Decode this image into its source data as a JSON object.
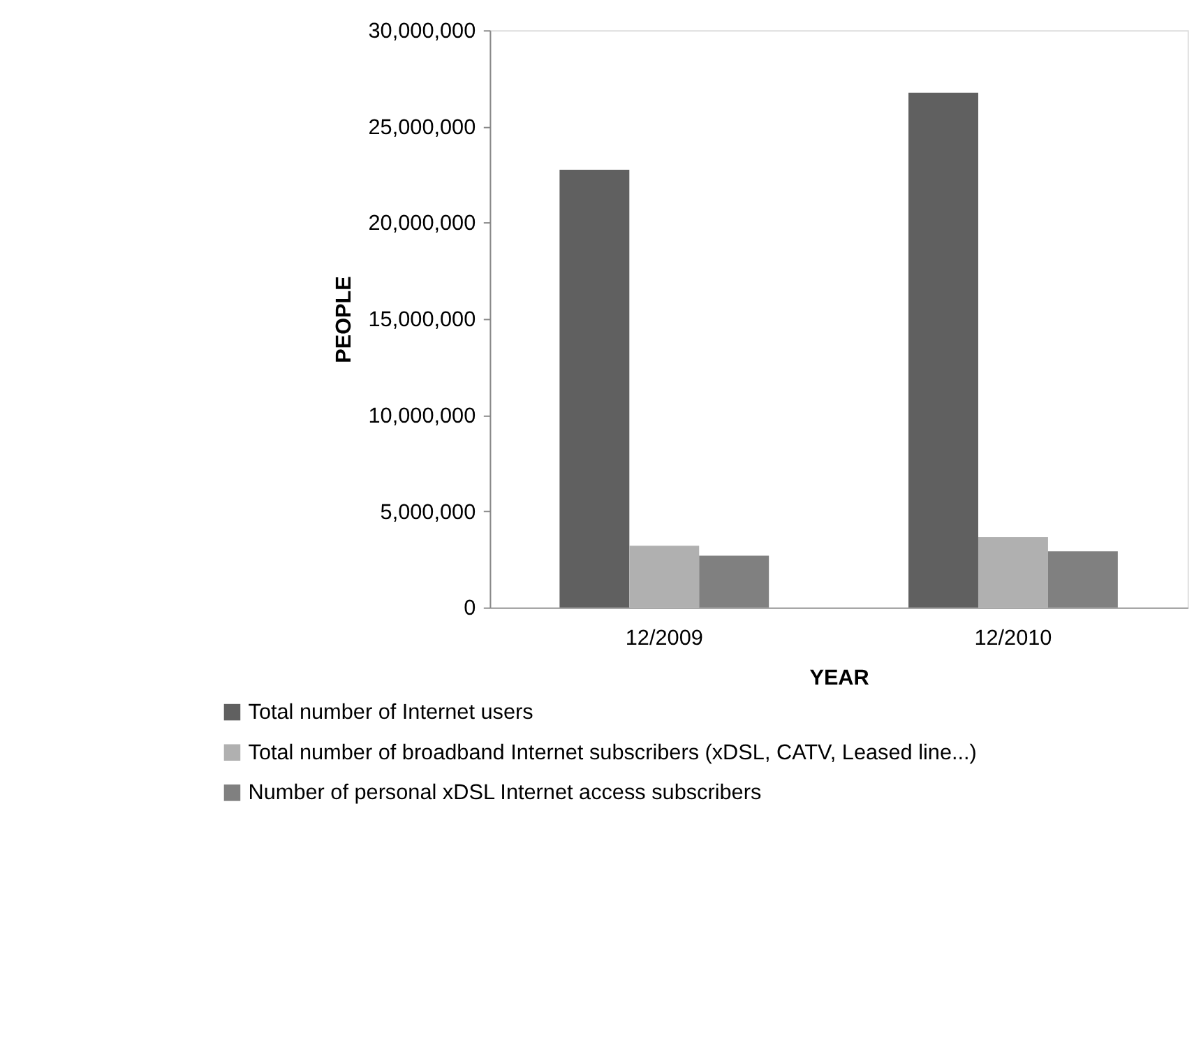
{
  "chart_data": {
    "type": "bar",
    "xlabel": "YEAR",
    "ylabel": "PEOPLE",
    "categories": [
      "12/2009",
      "12/2010"
    ],
    "series": [
      {
        "name": "Total number of Internet users",
        "color": "#606060",
        "values": [
          22750000,
          26750000
        ]
      },
      {
        "name": "Total number of broadband Internet subscribers (xDSL, CATV, Leased line...)",
        "color": "#b0b0b0",
        "values": [
          3210000,
          3650000
        ]
      },
      {
        "name": "Number of personal xDSL Internet access subscribers",
        "color": "#808080",
        "values": [
          2690000,
          2920000
        ]
      }
    ],
    "ylim": [
      0,
      30000000
    ],
    "yticks": [
      0,
      {
        "value": 5000000,
        "label": "5,000,000"
      },
      {
        "value": 10000000,
        "label": "10,000,000"
      },
      {
        "value": 15000000,
        "label": "15,000,000"
      },
      {
        "value": 20000000,
        "label": "20,000,000"
      },
      {
        "value": 25000000,
        "label": "25,000,000"
      },
      {
        "value": 30000000,
        "label": "30,000,000"
      }
    ],
    "grid": false,
    "legend": "bottom left"
  }
}
